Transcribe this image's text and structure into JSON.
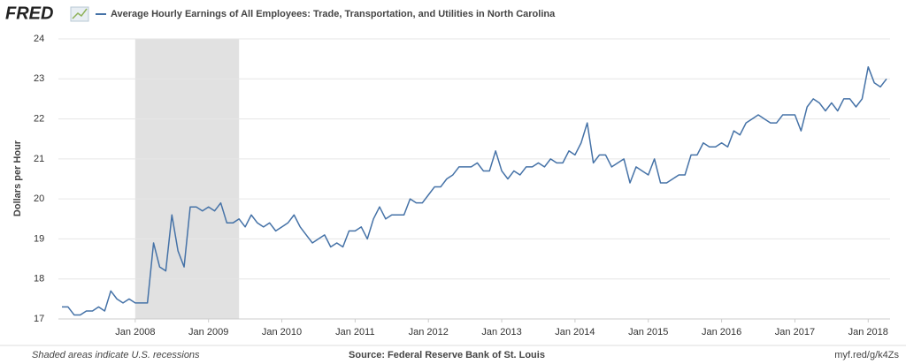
{
  "logo": "FRED",
  "footer": {
    "note": "Shaded areas indicate U.S. recessions",
    "source": "Source: Federal Reserve Bank of St. Louis",
    "link": "myf.red/g/k4Zs"
  },
  "chart_data": {
    "type": "line",
    "y_label": "Dollars per Hour",
    "x": [
      "2007-01",
      "2007-02",
      "2007-03",
      "2007-04",
      "2007-05",
      "2007-06",
      "2007-07",
      "2007-08",
      "2007-09",
      "2007-10",
      "2007-11",
      "2007-12",
      "2008-01",
      "2008-02",
      "2008-03",
      "2008-04",
      "2008-05",
      "2008-06",
      "2008-07",
      "2008-08",
      "2008-09",
      "2008-10",
      "2008-11",
      "2008-12",
      "2009-01",
      "2009-02",
      "2009-03",
      "2009-04",
      "2009-05",
      "2009-06",
      "2009-07",
      "2009-08",
      "2009-09",
      "2009-10",
      "2009-11",
      "2009-12",
      "2010-01",
      "2010-02",
      "2010-03",
      "2010-04",
      "2010-05",
      "2010-06",
      "2010-07",
      "2010-08",
      "2010-09",
      "2010-10",
      "2010-11",
      "2010-12",
      "2011-01",
      "2011-02",
      "2011-03",
      "2011-04",
      "2011-05",
      "2011-06",
      "2011-07",
      "2011-08",
      "2011-09",
      "2011-10",
      "2011-11",
      "2011-12",
      "2012-01",
      "2012-02",
      "2012-03",
      "2012-04",
      "2012-05",
      "2012-06",
      "2012-07",
      "2012-08",
      "2012-09",
      "2012-10",
      "2012-11",
      "2012-12",
      "2013-01",
      "2013-02",
      "2013-03",
      "2013-04",
      "2013-05",
      "2013-06",
      "2013-07",
      "2013-08",
      "2013-09",
      "2013-10",
      "2013-11",
      "2013-12",
      "2014-01",
      "2014-02",
      "2014-03",
      "2014-04",
      "2014-05",
      "2014-06",
      "2014-07",
      "2014-08",
      "2014-09",
      "2014-10",
      "2014-11",
      "2014-12",
      "2015-01",
      "2015-02",
      "2015-03",
      "2015-04",
      "2015-05",
      "2015-06",
      "2015-07",
      "2015-08",
      "2015-09",
      "2015-10",
      "2015-11",
      "2015-12",
      "2016-01",
      "2016-02",
      "2016-03",
      "2016-04",
      "2016-05",
      "2016-06",
      "2016-07",
      "2016-08",
      "2016-09",
      "2016-10",
      "2016-11",
      "2016-12",
      "2017-01",
      "2017-02",
      "2017-03",
      "2017-04",
      "2017-05",
      "2017-06",
      "2017-07",
      "2017-08",
      "2017-09",
      "2017-10",
      "2017-11",
      "2017-12",
      "2018-01",
      "2018-02",
      "2018-03",
      "2018-04"
    ],
    "series": [
      {
        "name": "Average Hourly Earnings of All Employees: Trade, Transportation, and Utilities in North Carolina",
        "color": "#4572a7",
        "values": [
          17.3,
          17.3,
          17.1,
          17.1,
          17.2,
          17.2,
          17.3,
          17.2,
          17.7,
          17.5,
          17.4,
          17.5,
          17.4,
          17.4,
          17.4,
          18.9,
          18.3,
          18.2,
          19.6,
          18.7,
          18.3,
          19.8,
          19.8,
          19.7,
          19.8,
          19.7,
          19.9,
          19.4,
          19.4,
          19.5,
          19.3,
          19.6,
          19.4,
          19.3,
          19.4,
          19.2,
          19.3,
          19.4,
          19.6,
          19.3,
          19.1,
          18.9,
          19.0,
          19.1,
          18.8,
          18.9,
          18.8,
          19.2,
          19.2,
          19.3,
          19.0,
          19.5,
          19.8,
          19.5,
          19.6,
          19.6,
          19.6,
          20.0,
          19.9,
          19.9,
          20.1,
          20.3,
          20.3,
          20.5,
          20.6,
          20.8,
          20.8,
          20.8,
          20.9,
          20.7,
          20.7,
          21.2,
          20.7,
          20.5,
          20.7,
          20.6,
          20.8,
          20.8,
          20.9,
          20.8,
          21.0,
          20.9,
          20.9,
          21.2,
          21.1,
          21.4,
          21.9,
          20.9,
          21.1,
          21.1,
          20.8,
          20.9,
          21.0,
          20.4,
          20.8,
          20.7,
          20.6,
          21.0,
          20.4,
          20.4,
          20.5,
          20.6,
          20.6,
          21.1,
          21.1,
          21.4,
          21.3,
          21.3,
          21.4,
          21.3,
          21.7,
          21.6,
          21.9,
          22.0,
          22.1,
          22.0,
          21.9,
          21.9,
          22.1,
          22.1,
          22.1,
          21.7,
          22.3,
          22.5,
          22.4,
          22.2,
          22.4,
          22.2,
          22.5,
          22.5,
          22.3,
          22.5,
          23.3,
          22.9,
          22.8,
          23.0
        ]
      }
    ],
    "xlim": [
      "2007-01",
      "2018-04"
    ],
    "xticks": [
      {
        "value": "2008-01",
        "label": "Jan 2008"
      },
      {
        "value": "2009-01",
        "label": "Jan 2009"
      },
      {
        "value": "2010-01",
        "label": "Jan 2010"
      },
      {
        "value": "2011-01",
        "label": "Jan 2011"
      },
      {
        "value": "2012-01",
        "label": "Jan 2012"
      },
      {
        "value": "2013-01",
        "label": "Jan 2013"
      },
      {
        "value": "2014-01",
        "label": "Jan 2014"
      },
      {
        "value": "2015-01",
        "label": "Jan 2015"
      },
      {
        "value": "2016-01",
        "label": "Jan 2016"
      },
      {
        "value": "2017-01",
        "label": "Jan 2017"
      },
      {
        "value": "2018-01",
        "label": "Jan 2018"
      }
    ],
    "ylim": [
      17,
      24
    ],
    "yticks": [
      17,
      18,
      19,
      20,
      21,
      22,
      23,
      24
    ],
    "grid": true,
    "recessions": [
      {
        "start": "2008-01",
        "end": "2009-06"
      }
    ]
  }
}
